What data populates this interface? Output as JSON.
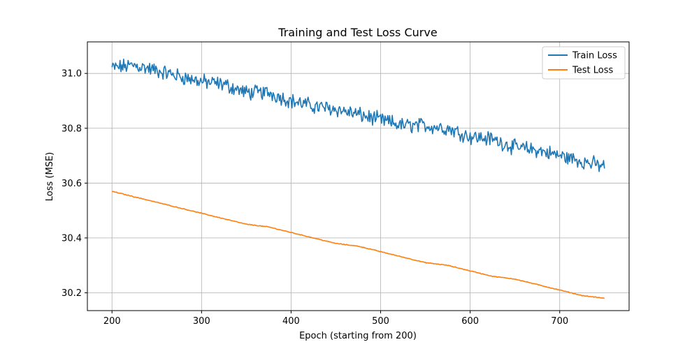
{
  "chart_data": {
    "type": "line",
    "title": "Training and Test Loss Curve",
    "xlabel": "Epoch (starting from 200)",
    "ylabel": "Loss (MSE)",
    "xlim": [
      172.5,
      777.5
    ],
    "ylim": [
      30.135,
      31.115
    ],
    "xticks": [
      200,
      300,
      400,
      500,
      600,
      700
    ],
    "yticks": [
      30.2,
      30.4,
      30.6,
      30.8,
      31.0
    ],
    "ytick_labels": [
      "30.2",
      "30.4",
      "30.6",
      "30.8",
      "31.0"
    ],
    "grid": true,
    "legend_position": "top-right",
    "series": [
      {
        "name": "Train Loss",
        "color": "#1f77b4",
        "x": [
          200,
          225,
          250,
          275,
          300,
          325,
          350,
          375,
          400,
          425,
          450,
          475,
          500,
          525,
          550,
          575,
          600,
          625,
          650,
          675,
          700,
          725,
          750
        ],
        "y": [
          31.02,
          31.03,
          31.01,
          30.99,
          30.97,
          30.96,
          30.93,
          30.93,
          30.9,
          30.88,
          30.87,
          30.85,
          30.83,
          30.81,
          30.81,
          30.8,
          30.77,
          30.76,
          30.73,
          30.72,
          30.7,
          30.68,
          30.66
        ],
        "noise": 0.022
      },
      {
        "name": "Test Loss",
        "color": "#ff7f0e",
        "x": [
          200,
          225,
          250,
          275,
          300,
          325,
          350,
          375,
          400,
          425,
          450,
          475,
          500,
          525,
          550,
          575,
          600,
          625,
          650,
          675,
          700,
          725,
          750
        ],
        "y": [
          30.57,
          30.55,
          30.53,
          30.51,
          30.49,
          30.47,
          30.45,
          30.44,
          30.42,
          30.4,
          30.38,
          30.37,
          30.35,
          30.33,
          30.31,
          30.3,
          30.28,
          30.26,
          30.25,
          30.23,
          30.21,
          30.19,
          30.18
        ],
        "noise": 0.001
      }
    ]
  }
}
